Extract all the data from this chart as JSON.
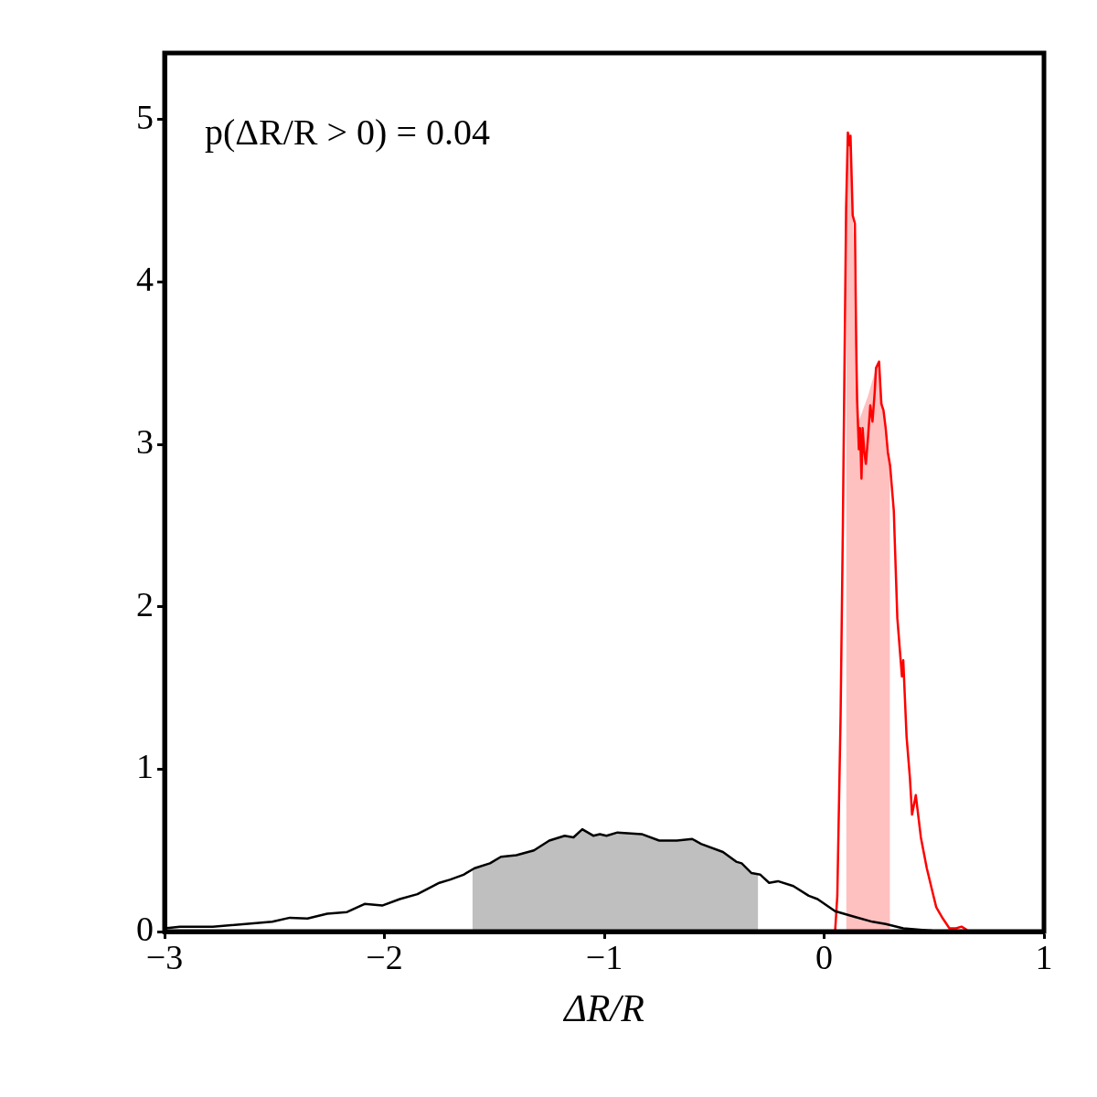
{
  "chart_data": {
    "type": "line",
    "xlabel": "ΔR/R",
    "annotations": [
      "p(ΔR/R > 0) = 0.04"
    ],
    "xlim": [
      -3,
      1
    ],
    "ylim": [
      0,
      5.41
    ],
    "xticks": [
      {
        "value": -3,
        "label": "−3"
      },
      {
        "value": -2,
        "label": "−2"
      },
      {
        "value": -1,
        "label": "−1"
      },
      0,
      1
    ],
    "yticks": [
      0,
      1,
      2,
      3,
      4,
      5
    ],
    "marker": "none",
    "series": [
      {
        "type": "area",
        "color": "#bfbfbf",
        "x": [
          -1.6,
          -1.59,
          -1.52,
          -1.47,
          -1.4,
          -1.32,
          -1.25,
          -1.18,
          -1.14,
          -1.1,
          -1.05,
          -1.02,
          -0.99,
          -0.94,
          -0.83,
          -0.75,
          -0.67,
          -0.6,
          -0.56,
          -0.46,
          -0.4,
          -0.375,
          -0.33,
          -0.3
        ],
        "values": [
          0.37,
          0.39,
          0.42,
          0.46,
          0.47,
          0.5,
          0.56,
          0.59,
          0.58,
          0.63,
          0.59,
          0.6,
          0.59,
          0.61,
          0.6,
          0.56,
          0.56,
          0.57,
          0.54,
          0.49,
          0.43,
          0.42,
          0.36,
          0.35
        ]
      },
      {
        "type": "area",
        "color": "#ffc0c0",
        "x": [
          0.1,
          0.108,
          0.12,
          0.13,
          0.146,
          0.16,
          0.2,
          0.236,
          0.25,
          0.27,
          0.29,
          0.3
        ],
        "values": [
          4.45,
          4.92,
          4.9,
          4.41,
          3.62,
          3.15,
          3.3,
          3.47,
          3.5,
          3.21,
          2.95,
          2.87
        ]
      },
      {
        "color": "#000000",
        "x": [
          -3,
          -2.93,
          -2.78,
          -2.51,
          -2.43,
          -2.35,
          -2.26,
          -2.17,
          -2.09,
          -2.01,
          -1.93,
          -1.85,
          -1.75,
          -1.7,
          -1.64,
          -1.59,
          -1.52,
          -1.47,
          -1.4,
          -1.32,
          -1.25,
          -1.18,
          -1.14,
          -1.1,
          -1.05,
          -1.02,
          -0.99,
          -0.94,
          -0.83,
          -0.75,
          -0.67,
          -0.6,
          -0.56,
          -0.46,
          -0.4,
          -0.375,
          -0.33,
          -0.29,
          -0.25,
          -0.21,
          -0.14,
          -0.07,
          -0.03,
          0.05,
          0.14,
          0.22,
          0.28,
          0.36,
          0.49,
          1
        ],
        "values": [
          0.02,
          0.03,
          0.03,
          0.06,
          0.085,
          0.08,
          0.11,
          0.12,
          0.17,
          0.16,
          0.2,
          0.23,
          0.3,
          0.32,
          0.35,
          0.39,
          0.42,
          0.46,
          0.47,
          0.5,
          0.56,
          0.59,
          0.58,
          0.63,
          0.59,
          0.6,
          0.59,
          0.61,
          0.6,
          0.56,
          0.56,
          0.57,
          0.54,
          0.49,
          0.43,
          0.42,
          0.36,
          0.35,
          0.3,
          0.31,
          0.28,
          0.22,
          0.2,
          0.125,
          0.09,
          0.06,
          0.046,
          0.02,
          0.005,
          0
        ]
      },
      {
        "color": "#ff0000",
        "x": [
          0.05,
          0.06,
          0.075,
          0.085,
          0.09,
          0.1,
          0.108,
          0.117,
          0.12,
          0.13,
          0.14,
          0.146,
          0.15,
          0.158,
          0.163,
          0.17,
          0.175,
          0.183,
          0.19,
          0.2,
          0.21,
          0.22,
          0.23,
          0.236,
          0.25,
          0.26,
          0.27,
          0.28,
          0.29,
          0.3,
          0.317,
          0.32,
          0.333,
          0.354,
          0.36,
          0.375,
          0.39,
          0.4,
          0.417,
          0.44,
          0.467,
          0.49,
          0.51,
          0.54,
          0.57,
          0.6,
          0.625,
          0.65
        ],
        "values": [
          0,
          0.22,
          1.33,
          2.46,
          3.14,
          4.45,
          4.92,
          4.84,
          4.9,
          4.41,
          4.36,
          3.62,
          3.27,
          2.97,
          3.1,
          2.79,
          3.1,
          2.95,
          2.88,
          3.05,
          3.24,
          3.14,
          3.32,
          3.47,
          3.51,
          3.25,
          3.21,
          3.1,
          2.95,
          2.87,
          2.59,
          2.46,
          1.93,
          1.57,
          1.67,
          1.2,
          0.95,
          0.72,
          0.84,
          0.58,
          0.39,
          0.26,
          0.15,
          0.08,
          0.02,
          0.02,
          0.03,
          0.01
        ]
      }
    ]
  }
}
